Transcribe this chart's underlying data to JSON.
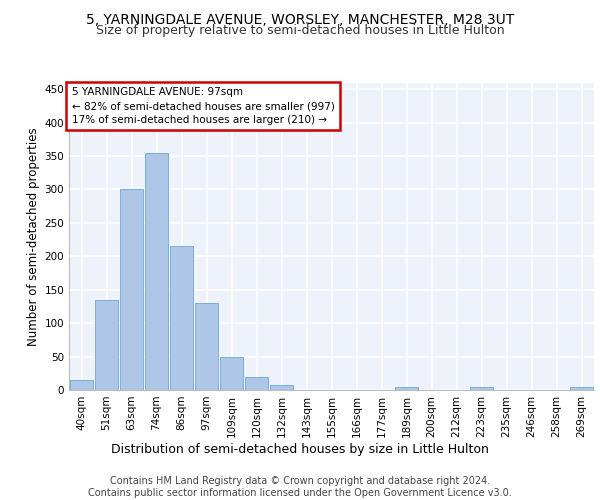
{
  "title1": "5, YARNINGDALE AVENUE, WORSLEY, MANCHESTER, M28 3UT",
  "title2": "Size of property relative to semi-detached houses in Little Hulton",
  "xlabel": "Distribution of semi-detached houses by size in Little Hulton",
  "ylabel": "Number of semi-detached properties",
  "footnote1": "Contains HM Land Registry data © Crown copyright and database right 2024.",
  "footnote2": "Contains public sector information licensed under the Open Government Licence v3.0.",
  "categories": [
    "40sqm",
    "51sqm",
    "63sqm",
    "74sqm",
    "86sqm",
    "97sqm",
    "109sqm",
    "120sqm",
    "132sqm",
    "143sqm",
    "155sqm",
    "166sqm",
    "177sqm",
    "189sqm",
    "200sqm",
    "212sqm",
    "223sqm",
    "235sqm",
    "246sqm",
    "258sqm",
    "269sqm"
  ],
  "values": [
    15,
    135,
    300,
    355,
    215,
    130,
    50,
    20,
    8,
    0,
    0,
    0,
    0,
    4,
    0,
    0,
    4,
    0,
    0,
    0,
    4
  ],
  "bar_color": "#aec6e8",
  "bar_edge_color": "#7aafd4",
  "highlight_index": 5,
  "annotation_box_text": "5 YARNINGDALE AVENUE: 97sqm\n← 82% of semi-detached houses are smaller (997)\n17% of semi-detached houses are larger (210) →",
  "annotation_box_color": "#cc0000",
  "ylim": [
    0,
    460
  ],
  "yticks": [
    0,
    50,
    100,
    150,
    200,
    250,
    300,
    350,
    400,
    450
  ],
  "background_color": "#eef2fa",
  "grid_color": "#ffffff",
  "title1_fontsize": 10,
  "title2_fontsize": 9,
  "tick_fontsize": 7.5,
  "ylabel_fontsize": 8.5,
  "xlabel_fontsize": 9,
  "footnote_fontsize": 7,
  "ann_fontsize": 7.5
}
